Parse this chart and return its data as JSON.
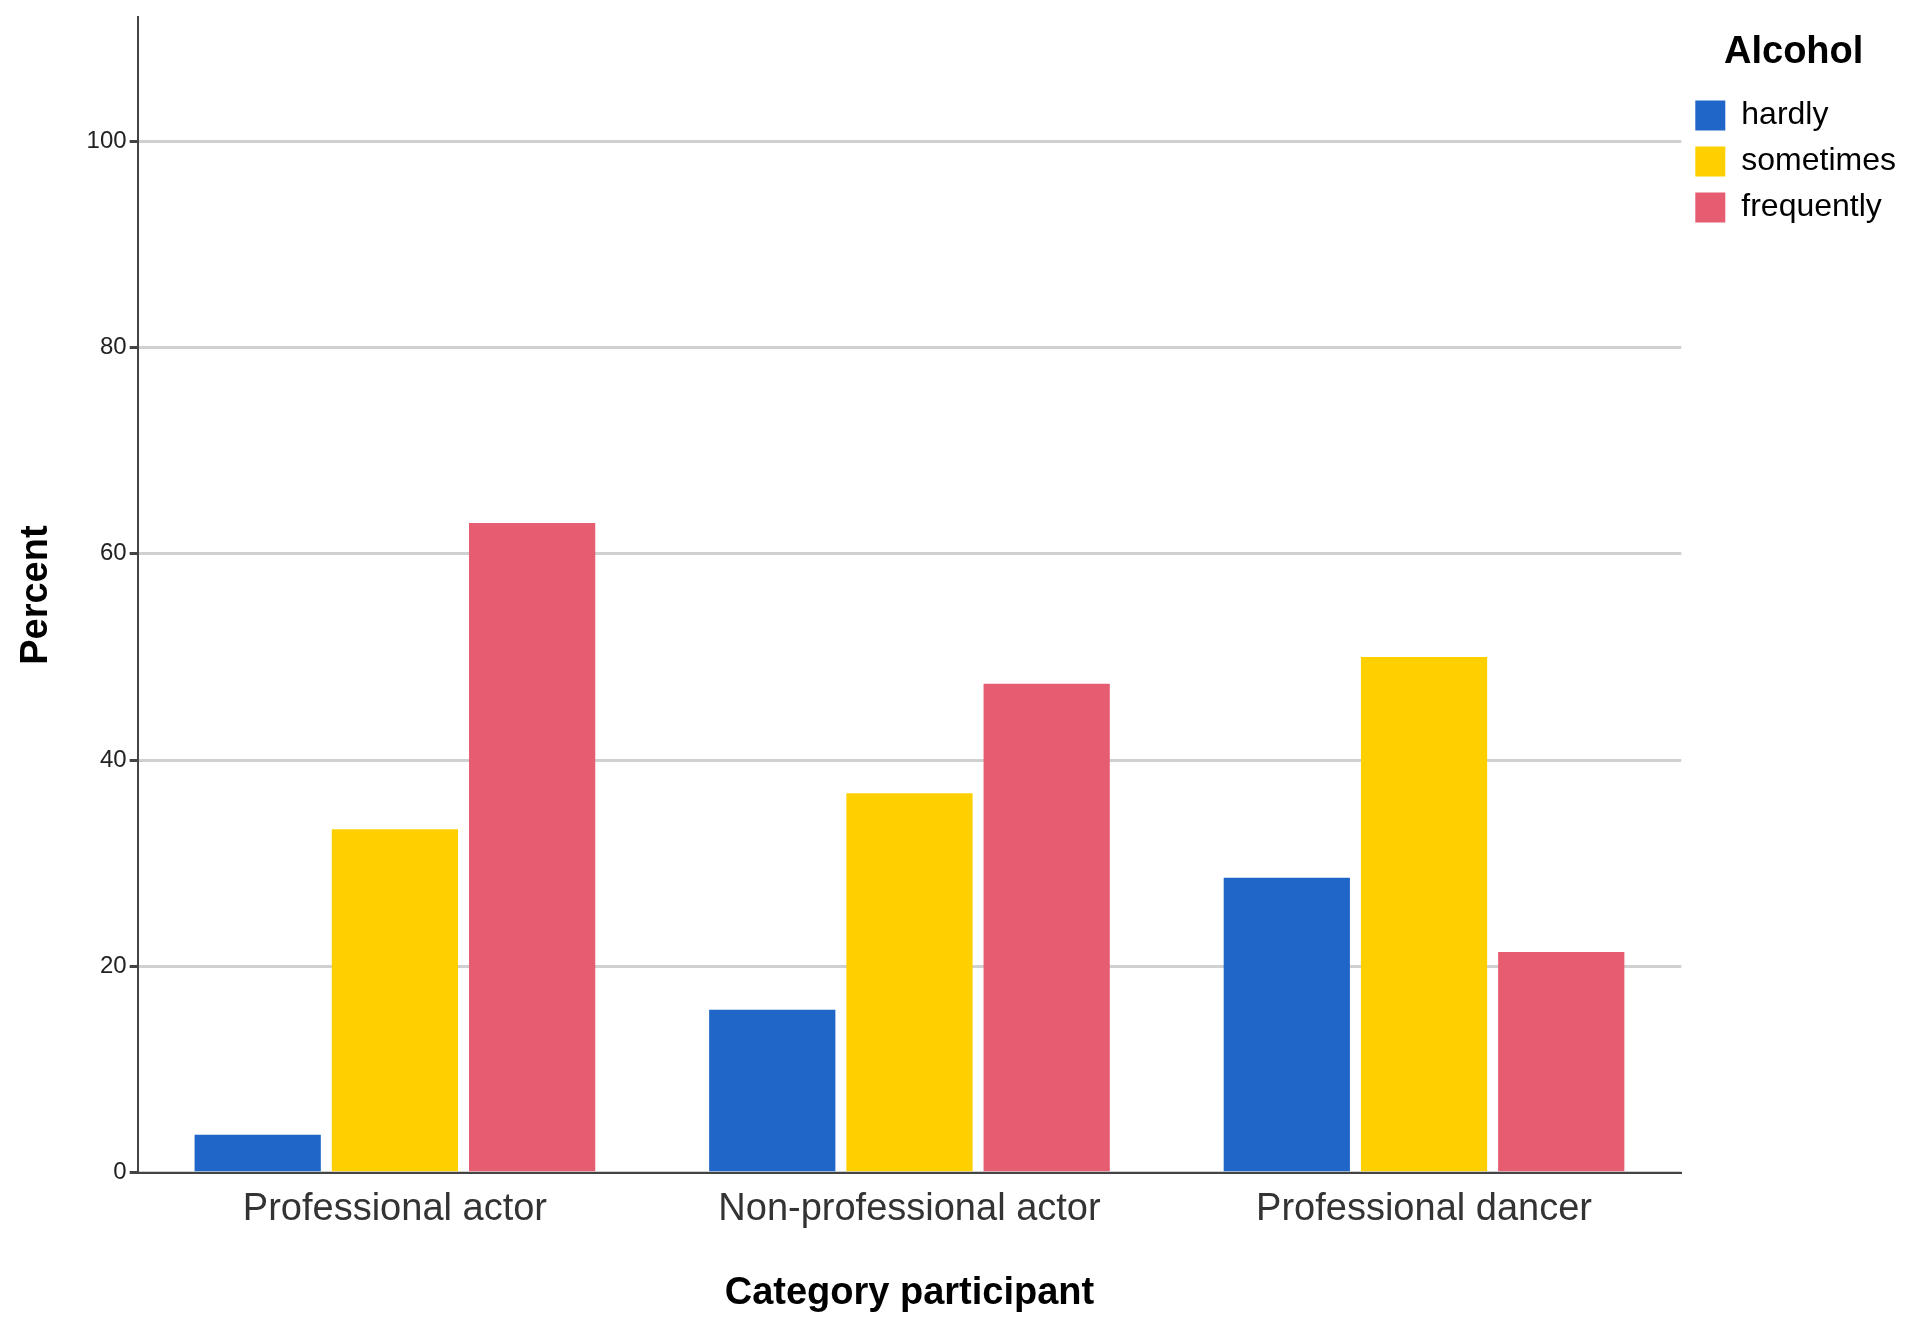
{
  "chart_data": {
    "type": "bar",
    "xlabel": "Category participant",
    "ylabel": "Percent",
    "legend_title": "Alcohol",
    "categories": [
      "Professional actor",
      "Non-professional actor",
      "Professional dancer"
    ],
    "series": [
      {
        "name": "hardly",
        "color": "#2066c8",
        "values": [
          3.7,
          15.8,
          28.6
        ]
      },
      {
        "name": "sometimes",
        "color": "#ffd000",
        "values": [
          33.3,
          36.8,
          50.0
        ]
      },
      {
        "name": "frequently",
        "color": "#e65c70",
        "values": [
          63.0,
          47.4,
          21.4
        ]
      }
    ],
    "ylim": [
      0,
      112
    ],
    "yticks": [
      0,
      20,
      40,
      60,
      80,
      100
    ],
    "grid": "y",
    "legend": "top right"
  }
}
